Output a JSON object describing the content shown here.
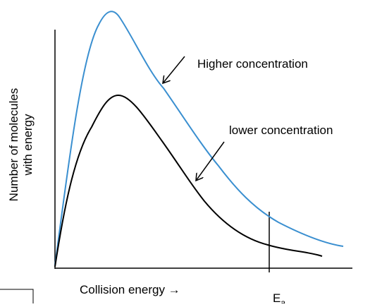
{
  "labels": {
    "y_axis": [
      "Number of molecules",
      "with energy"
    ],
    "x_axis": "Collision energy →",
    "higher": "Higher  concentration",
    "lower": "lower  concentration",
    "ea": "E",
    "ea_sub": "a"
  }
}
